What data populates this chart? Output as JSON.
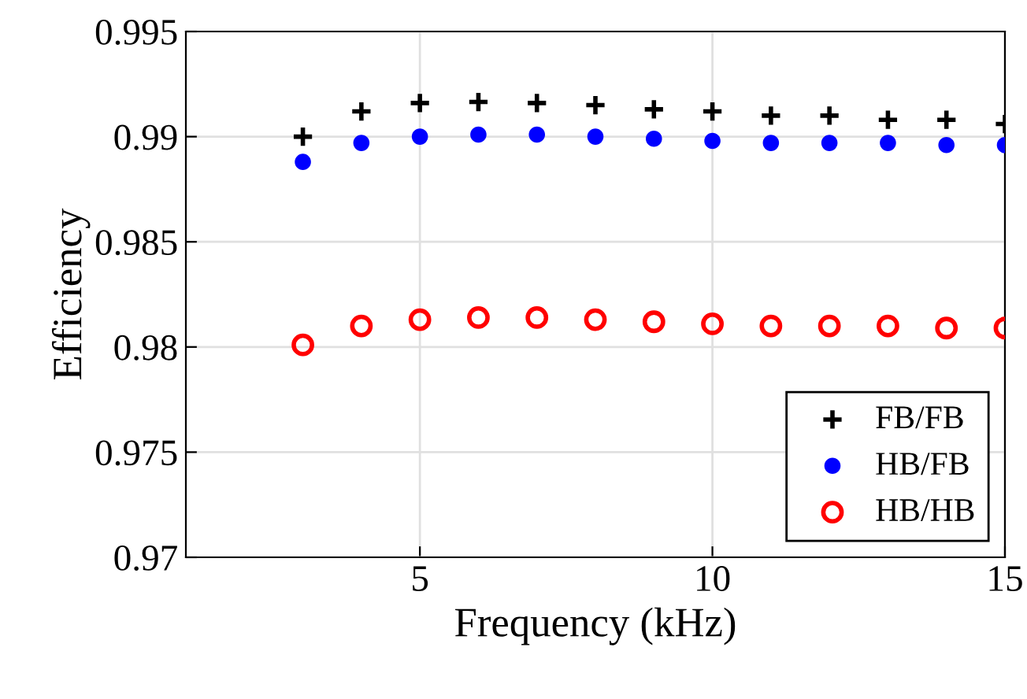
{
  "chart_data": {
    "type": "scatter",
    "xlabel": "Frequency (kHz)",
    "ylabel": "Efficiency",
    "x": [
      3,
      4,
      5,
      6,
      7,
      8,
      9,
      10,
      11,
      12,
      13,
      14,
      15
    ],
    "series": [
      {
        "name": "FB/FB",
        "color": "#000000",
        "marker": "cross",
        "values": [
          0.99,
          0.9912,
          0.9916,
          0.99165,
          0.9916,
          0.9915,
          0.9913,
          0.9912,
          0.991,
          0.991,
          0.9908,
          0.9908,
          0.9906
        ]
      },
      {
        "name": "HB/FB",
        "color": "#0000ff",
        "marker": "circle",
        "values": [
          0.9888,
          0.9897,
          0.99,
          0.9901,
          0.9901,
          0.99,
          0.9899,
          0.9898,
          0.9897,
          0.9897,
          0.9897,
          0.9896,
          0.9896
        ]
      },
      {
        "name": "HB/HB",
        "color": "#ff0000",
        "marker": "circle_open",
        "values": [
          0.9801,
          0.981,
          0.9813,
          0.9814,
          0.9814,
          0.9813,
          0.9812,
          0.9811,
          0.981,
          0.981,
          0.981,
          0.9809,
          0.9809
        ]
      }
    ],
    "xlim": [
      1,
      15
    ],
    "xticks": [
      5,
      10,
      15
    ],
    "ylim": [
      0.97,
      0.995
    ],
    "yticks": [
      0.97,
      0.975,
      0.98,
      0.985,
      0.99,
      0.995
    ],
    "grid": true,
    "legend": "bottom right"
  }
}
